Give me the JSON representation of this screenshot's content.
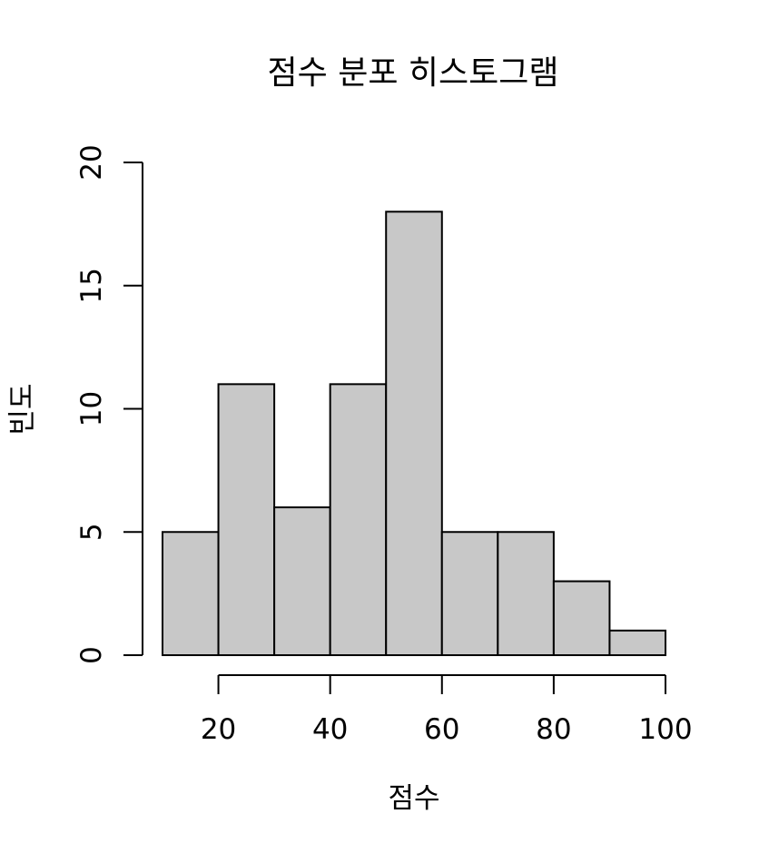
{
  "chart_data": {
    "type": "bar",
    "title": "점수 분포 히스토그램",
    "xlabel": "점수",
    "ylabel": "빈도",
    "bins": [
      {
        "start": 10,
        "end": 20,
        "count": 5
      },
      {
        "start": 20,
        "end": 30,
        "count": 11
      },
      {
        "start": 30,
        "end": 40,
        "count": 6
      },
      {
        "start": 40,
        "end": 50,
        "count": 11
      },
      {
        "start": 50,
        "end": 60,
        "count": 18
      },
      {
        "start": 60,
        "end": 70,
        "count": 5
      },
      {
        "start": 70,
        "end": 80,
        "count": 5
      },
      {
        "start": 80,
        "end": 90,
        "count": 3
      },
      {
        "start": 90,
        "end": 100,
        "count": 1
      }
    ],
    "x_ticks": [
      20,
      40,
      60,
      80,
      100
    ],
    "y_ticks": [
      0,
      5,
      10,
      15,
      20
    ],
    "xlim": [
      10,
      100
    ],
    "ylim": [
      0,
      20
    ],
    "grid": false,
    "colors": {
      "bar_fill": "#c8c8c8",
      "bar_stroke": "#000000"
    }
  }
}
